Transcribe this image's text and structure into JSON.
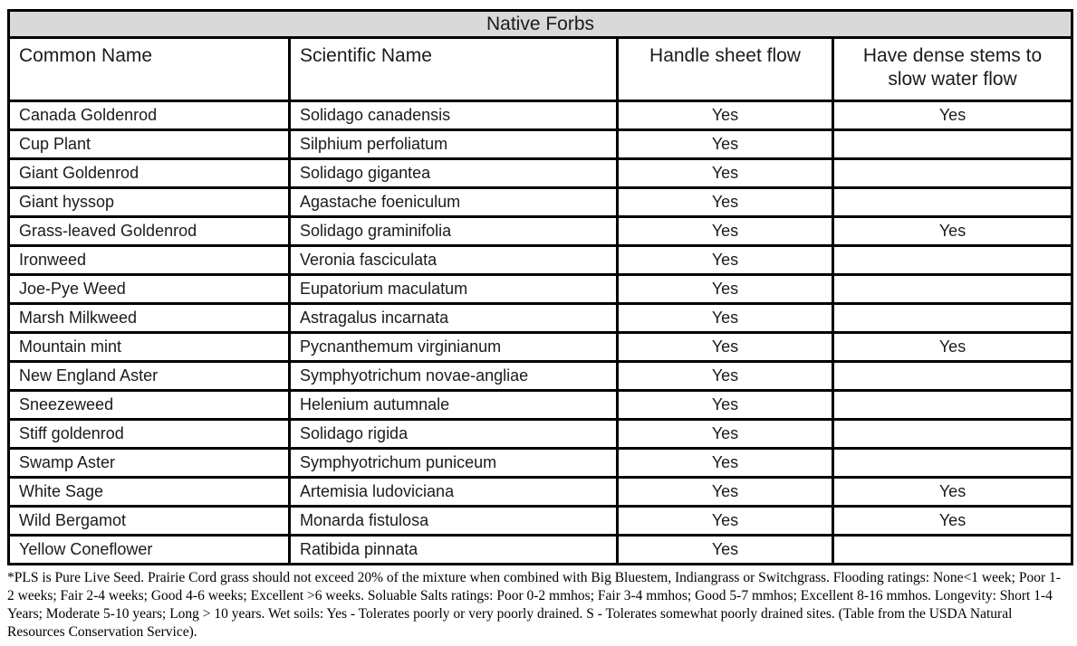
{
  "title": "Native Forbs",
  "colors": {
    "title_background": "#d9d9d9",
    "border": "#000000",
    "text": "#1b1b1b"
  },
  "table": {
    "columns": [
      {
        "label": "Common Name",
        "align": "left"
      },
      {
        "label": "Scientific Name",
        "align": "left"
      },
      {
        "label": "Handle sheet flow",
        "align": "center"
      },
      {
        "label": "Have dense stems to slow water flow",
        "align": "center"
      }
    ],
    "rows": [
      {
        "common_name": "Canada Goldenrod",
        "scientific_name": "Solidago canadensis",
        "handle_sheet_flow": "Yes",
        "dense_stems": "Yes"
      },
      {
        "common_name": "Cup Plant",
        "scientific_name": "Silphium perfoliatum",
        "handle_sheet_flow": "Yes",
        "dense_stems": ""
      },
      {
        "common_name": "Giant Goldenrod",
        "scientific_name": "Solidago gigantea",
        "handle_sheet_flow": "Yes",
        "dense_stems": ""
      },
      {
        "common_name": "Giant hyssop",
        "scientific_name": "Agastache foeniculum",
        "handle_sheet_flow": "Yes",
        "dense_stems": ""
      },
      {
        "common_name": "Grass-leaved Goldenrod",
        "scientific_name": "Solidago graminifolia",
        "handle_sheet_flow": "Yes",
        "dense_stems": "Yes"
      },
      {
        "common_name": "Ironweed",
        "scientific_name": "Veronia fasciculata",
        "handle_sheet_flow": "Yes",
        "dense_stems": ""
      },
      {
        "common_name": "Joe-Pye Weed",
        "scientific_name": "Eupatorium maculatum",
        "handle_sheet_flow": "Yes",
        "dense_stems": ""
      },
      {
        "common_name": "Marsh Milkweed",
        "scientific_name": "Astragalus incarnata",
        "handle_sheet_flow": "Yes",
        "dense_stems": ""
      },
      {
        "common_name": "Mountain mint",
        "scientific_name": "Pycnanthemum virginianum",
        "handle_sheet_flow": "Yes",
        "dense_stems": "Yes"
      },
      {
        "common_name": "New England Aster",
        "scientific_name": "Symphyotrichum novae-angliae",
        "handle_sheet_flow": "Yes",
        "dense_stems": ""
      },
      {
        "common_name": "Sneezeweed",
        "scientific_name": "Helenium autumnale",
        "handle_sheet_flow": "Yes",
        "dense_stems": ""
      },
      {
        "common_name": "Stiff goldenrod",
        "scientific_name": "Solidago rigida",
        "handle_sheet_flow": "Yes",
        "dense_stems": ""
      },
      {
        "common_name": "Swamp Aster",
        "scientific_name": "Symphyotrichum puniceum",
        "handle_sheet_flow": "Yes",
        "dense_stems": ""
      },
      {
        "common_name": "White Sage",
        "scientific_name": "Artemisia ludoviciana",
        "handle_sheet_flow": "Yes",
        "dense_stems": "Yes"
      },
      {
        "common_name": "Wild Bergamot",
        "scientific_name": "Monarda fistulosa",
        "handle_sheet_flow": "Yes",
        "dense_stems": "Yes"
      },
      {
        "common_name": "Yellow Coneflower",
        "scientific_name": "Ratibida pinnata",
        "handle_sheet_flow": "Yes",
        "dense_stems": ""
      }
    ]
  },
  "footnote": "*PLS is Pure Live Seed. Prairie Cord grass should not exceed 20% of the mixture when combined with Big Bluestem, Indiangrass or Switchgrass. Flooding ratings: None<1 week; Poor 1-2 weeks; Fair 2-4 weeks; Good 4-6 weeks; Excellent >6 weeks. Soluable Salts ratings: Poor 0-2 mmhos; Fair 3-4 mmhos; Good 5-7 mmhos; Excellent 8-16 mmhos. Longevity: Short 1-4 Years; Moderate 5-10 years; Long > 10 years. Wet soils: Yes - Tolerates poorly or very poorly drained. S - Tolerates somewhat poorly drained sites.  (Table from the USDA Natural Resources Conservation Service)."
}
